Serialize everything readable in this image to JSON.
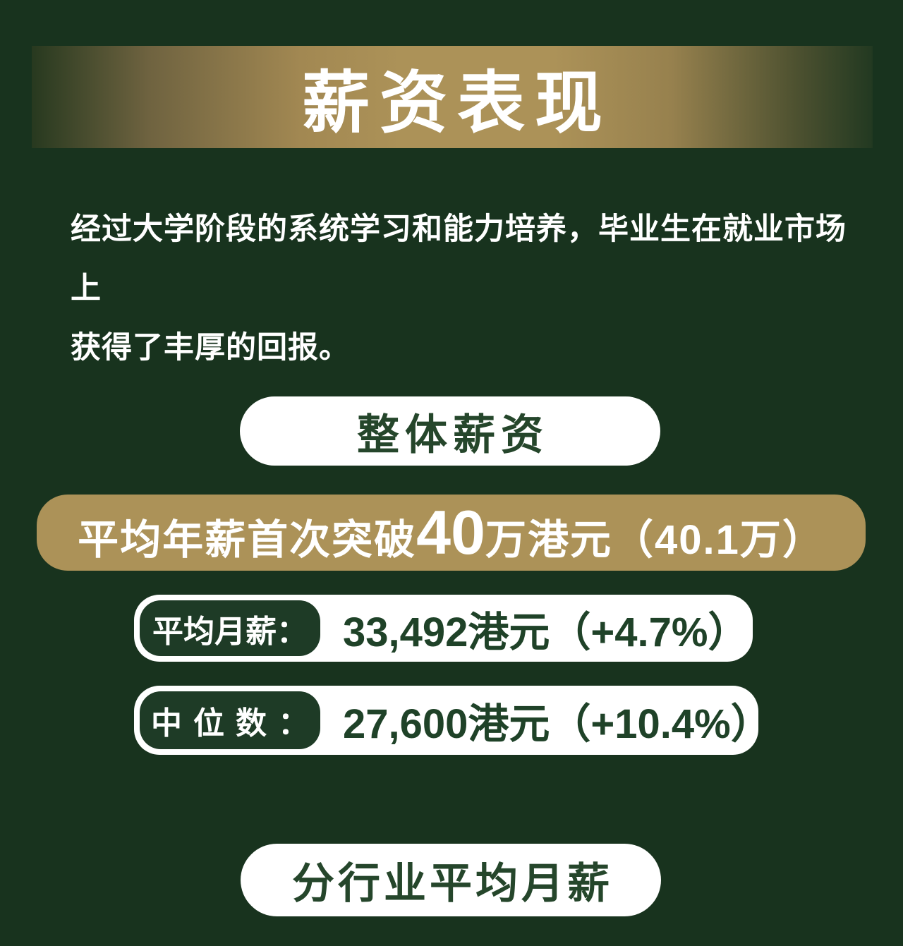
{
  "colors": {
    "background": "#18331e",
    "gold": "#ac9258",
    "white": "#ffffff",
    "dark_green_text": "#1f4228",
    "label_green_bg": "#1e3b26"
  },
  "header": {
    "title": "薪资表现"
  },
  "intro": {
    "line1": "经过大学阶段的系统学习和能力培养，毕业生在就业市场上",
    "line2": "获得了丰厚的回报。"
  },
  "overall_section": {
    "pill_label": "整体薪资"
  },
  "highlight": {
    "prefix": "平均年薪首次突破",
    "big_number": "40",
    "suffix": "万港元（40.1万）"
  },
  "stats": [
    {
      "label": "平均月薪：",
      "value": "33,492港元（+4.7%）"
    },
    {
      "label": "中位数：",
      "value": "27,600港元（+10.4%）"
    }
  ],
  "industry_section": {
    "pill_label": "分行业平均月薪"
  }
}
